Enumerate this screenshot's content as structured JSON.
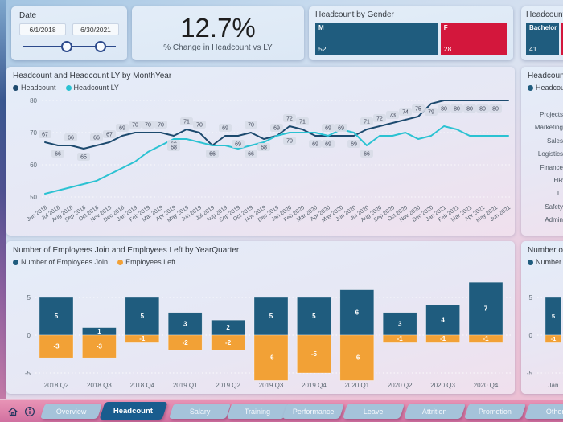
{
  "date_slicer": {
    "label": "Date",
    "start_date": "6/1/2018",
    "end_date": "6/30/2021"
  },
  "kpi": {
    "value": "12.7%",
    "label": "% Change in Headcount vs LY"
  },
  "gender_card": {
    "title": "Headcount by Gender",
    "items": [
      {
        "label": "M",
        "value": "52",
        "color": "#1f5c7e"
      },
      {
        "label": "F",
        "value": "28",
        "color": "#d3173c"
      }
    ]
  },
  "education_card": {
    "title": "Headcount by",
    "items": [
      {
        "label": "Bachelor",
        "value": "41",
        "color": "#1f5c7e"
      },
      {
        "label": "",
        "value": "",
        "color": "#d3173c"
      }
    ]
  },
  "dept_panel": {
    "title": "Headcount",
    "legend": "Headcount",
    "categories": [
      "Projects",
      "Marketing",
      "Sales",
      "Logistics",
      "Finance",
      "HR",
      "IT",
      "Safety",
      "Admin"
    ]
  },
  "nav": {
    "tabs": [
      "Overview",
      "Headcount",
      "Salary",
      "Training",
      "Performance",
      "Leave",
      "Attrition",
      "Promotion",
      "Other"
    ],
    "active": "Headcount",
    "icons": [
      "home-icon",
      "info-icon"
    ]
  },
  "colors": {
    "dark_blue": "#1f5c7e",
    "line_dark": "#1d4a6e",
    "teal": "#2bc2d2",
    "red": "#d3173c",
    "orange": "#f2a136",
    "active_tab": "#195c8e",
    "inactive_tab": "#a5c3da",
    "label_pill": "#d8dce7"
  },
  "chart_data": [
    {
      "type": "line",
      "title": "Headcount and Headcount LY by MonthYear",
      "x": [
        "Jun 2018",
        "Jul 2018",
        "Aug 2018",
        "Sep 2018",
        "Oct 2018",
        "Nov 2018",
        "Dec 2018",
        "Jan 2019",
        "Feb 2019",
        "Mar 2019",
        "Apr 2019",
        "May 2019",
        "Jun 2019",
        "Jul 2019",
        "Aug 2019",
        "Sep 2019",
        "Oct 2019",
        "Nov 2019",
        "Dec 2019",
        "Jan 2020",
        "Feb 2020",
        "Mar 2020",
        "Apr 2020",
        "May 2020",
        "Jun 2020",
        "Jul 2020",
        "Aug 2020",
        "Sep 2020",
        "Oct 2020",
        "Nov 2020",
        "Dec 2020",
        "Jan 2021",
        "Feb 2021",
        "Mar 2021",
        "Apr 2021",
        "May 2021",
        "Jun 2021"
      ],
      "ylim": [
        50,
        80
      ],
      "yticks": [
        80,
        70,
        60,
        50
      ],
      "grid": "dotted",
      "legend_position": "top",
      "series": [
        {
          "name": "Headcount",
          "color": "#1d4a6e",
          "values": [
            67,
            66,
            66,
            65,
            66,
            67,
            69,
            70,
            70,
            70,
            69,
            71,
            70,
            66,
            69,
            69,
            70,
            68,
            69,
            72,
            71,
            69,
            69,
            69,
            69,
            71,
            72,
            73,
            74,
            75,
            79,
            80,
            80,
            80,
            80,
            80,
            80
          ]
        },
        {
          "name": "Headcount LY",
          "color": "#2bc2d2",
          "values": [
            51,
            52,
            53,
            54,
            55,
            57,
            59,
            61,
            64,
            66,
            68,
            68,
            67,
            66,
            66,
            65,
            66,
            67,
            69,
            70,
            70,
            70,
            69,
            71,
            70,
            66,
            69,
            69,
            70,
            68,
            69,
            72,
            71,
            69,
            69,
            69,
            69
          ],
          "label_indices": [
            10,
            13,
            16,
            19,
            22,
            25
          ]
        }
      ]
    },
    {
      "type": "bar",
      "title": "Number of Employees Join and Employees Left by YearQuarter",
      "categories": [
        "2018 Q2",
        "2018 Q3",
        "2018 Q4",
        "2019 Q1",
        "2019 Q2",
        "2019 Q3",
        "2019 Q4",
        "2020 Q1",
        "2020 Q2",
        "2020 Q3",
        "2020 Q4"
      ],
      "yticks": [
        5,
        0,
        -5
      ],
      "grid": "dotted",
      "legend_position": "top",
      "series": [
        {
          "name": "Number of Employees Join",
          "color": "#1f5c7e",
          "values": [
            5,
            1,
            5,
            3,
            2,
            5,
            5,
            6,
            3,
            4,
            7
          ]
        },
        {
          "name": "Employees Left",
          "color": "#f2a136",
          "values": [
            -3,
            -3,
            -1,
            -2,
            -2,
            -6,
            -5,
            -6,
            -1,
            -1,
            -1
          ]
        }
      ]
    },
    {
      "type": "bar",
      "title": "Number of E",
      "partial": true,
      "categories": [
        "Jan",
        ""
      ],
      "yticks": [
        5,
        0,
        -5
      ],
      "grid": "dotted",
      "legend_position": "top",
      "series": [
        {
          "name": "Number of",
          "color": "#1f5c7e",
          "values": [
            5,
            null
          ]
        },
        {
          "name": "",
          "color": "#f2a136",
          "values": [
            -1,
            -4
          ]
        }
      ]
    }
  ]
}
